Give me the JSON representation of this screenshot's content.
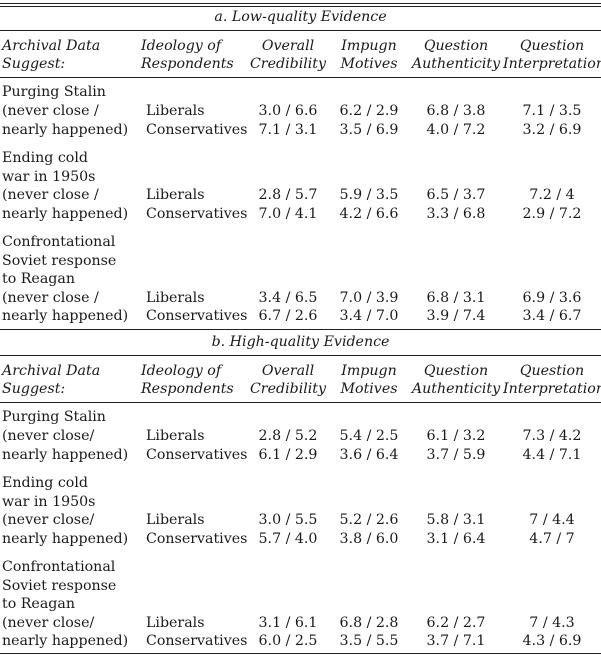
{
  "panels": [
    {
      "title": "a. Low-quality Evidence",
      "headers": {
        "col1": [
          "Archival Data",
          "Suggest:"
        ],
        "col2": [
          "Ideology of",
          "Respondents"
        ],
        "col3": [
          "Overall",
          "Credibility"
        ],
        "col4": [
          "Impugn",
          "Motives"
        ],
        "col5": [
          "Question",
          "Authenticity"
        ],
        "col6": [
          "Question",
          "Interpretation"
        ]
      },
      "rows": [
        {
          "label": [
            "Purging Stalin",
            "(never close /",
            "nearly happened)"
          ],
          "liberal": {
            "ideology": "Liberals",
            "credibility": "3.0 / 6.6",
            "motives": "6.2 / 2.9",
            "authenticity": "6.8 / 3.8",
            "interpretation": "7.1 / 3.5"
          },
          "conservative": {
            "ideology": "Conservatives",
            "credibility": "7.1 / 3.1",
            "motives": "3.5 / 6.9",
            "authenticity": "4.0 / 7.2",
            "interpretation": "3.2 / 6.9"
          }
        },
        {
          "label": [
            "Ending cold",
            "war in 1950s",
            "(never close /",
            "nearly happened)"
          ],
          "liberal": {
            "ideology": "Liberals",
            "credibility": "2.8 / 5.7",
            "motives": "5.9 / 3.5",
            "authenticity": "6.5 / 3.7",
            "interpretation": "7.2 / 4"
          },
          "conservative": {
            "ideology": "Conservatives",
            "credibility": "7.0 / 4.1",
            "motives": "4.2 / 6.6",
            "authenticity": "3.3 / 6.8",
            "interpretation": "2.9 / 7.2"
          }
        },
        {
          "label": [
            "Confrontational",
            "Soviet response",
            "to Reagan",
            "(never close /",
            "nearly happened)"
          ],
          "liberal": {
            "ideology": "Liberals",
            "credibility": "3.4 / 6.5",
            "motives": "7.0 / 3.9",
            "authenticity": "6.8 / 3.1",
            "interpretation": "6.9 / 3.6"
          },
          "conservative": {
            "ideology": "Conservatives",
            "credibility": "6.7 / 2.6",
            "motives": "3.4 / 7.0",
            "authenticity": "3.9 / 7.4",
            "interpretation": "3.4 / 6.7"
          }
        }
      ]
    },
    {
      "title": "b. High-quality Evidence",
      "headers": {
        "col1": [
          "Archival Data",
          "Suggest:"
        ],
        "col2": [
          "Ideology of",
          "Respondents"
        ],
        "col3": [
          "Overall",
          "Credibility"
        ],
        "col4": [
          "Impugn",
          "Motives"
        ],
        "col5": [
          "Question",
          "Authenticity"
        ],
        "col6": [
          "Question",
          "Interpretation"
        ]
      },
      "rows": [
        {
          "label": [
            "Purging Stalin",
            "(never close/",
            "nearly happened)"
          ],
          "liberal": {
            "ideology": "Liberals",
            "credibility": "2.8 / 5.2",
            "motives": "5.4 / 2.5",
            "authenticity": "6.1 / 3.2",
            "interpretation": "7.3 / 4.2"
          },
          "conservative": {
            "ideology": "Conservatives",
            "credibility": "6.1 / 2.9",
            "motives": "3.6 / 6.4",
            "authenticity": "3.7 / 5.9",
            "interpretation": "4.4 / 7.1"
          }
        },
        {
          "label": [
            "Ending cold",
            "war in 1950s",
            "(never close/",
            "nearly happened)"
          ],
          "liberal": {
            "ideology": "Liberals",
            "credibility": "3.0 / 5.5",
            "motives": "5.2 / 2.6",
            "authenticity": "5.8 / 3.1",
            "interpretation": "7 / 4.4"
          },
          "conservative": {
            "ideology": "Conservatives",
            "credibility": "5.7 / 4.0",
            "motives": "3.8 / 6.0",
            "authenticity": "3.1 / 6.4",
            "interpretation": "4.7 / 7"
          }
        },
        {
          "label": [
            "Confrontational",
            "Soviet response",
            "to Reagan",
            "(never close/",
            "nearly happened)"
          ],
          "liberal": {
            "ideology": "Liberals",
            "credibility": "3.1 / 6.1",
            "motives": "6.8 / 2.8",
            "authenticity": "6.2 / 2.7",
            "interpretation": "7 / 4.3"
          },
          "conservative": {
            "ideology": "Conservatives",
            "credibility": "6.0 / 2.5",
            "motives": "3.5 / 5.5",
            "authenticity": "3.7 / 7.1",
            "interpretation": "4.3 / 6.9"
          }
        }
      ]
    }
  ]
}
